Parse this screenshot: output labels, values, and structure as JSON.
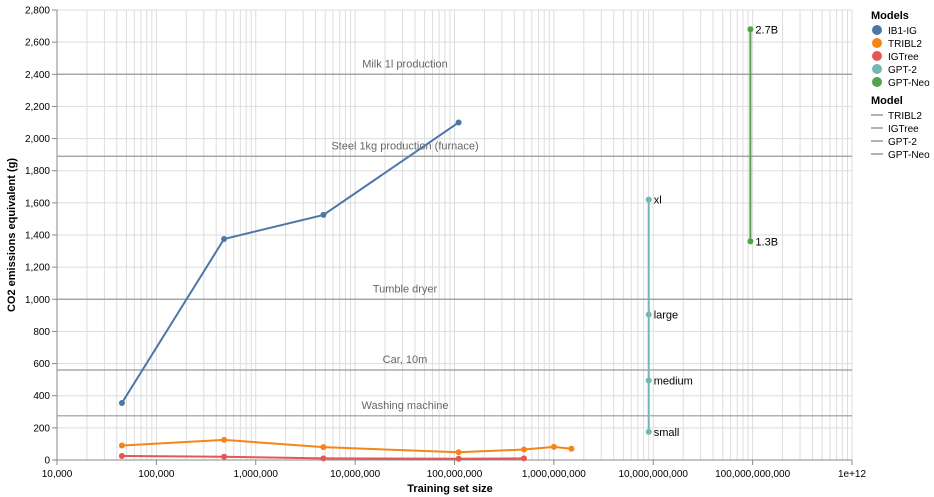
{
  "chart_data": {
    "type": "line",
    "xlabel": "Training set size",
    "ylabel": "CO2 emissions equivalent (g)",
    "x_scale": "log",
    "xlim": [
      10000,
      1000000000000
    ],
    "ylim": [
      0,
      2800
    ],
    "grid": true,
    "x_tick_labels": [
      "10,000",
      "100,000",
      "1,000,000",
      "10,000,000",
      "100,000,000",
      "1,000,000,000",
      "10,000,000,000",
      "100,000,000,000",
      "1e+12"
    ],
    "y_tick_labels": [
      "0",
      "200",
      "400",
      "600",
      "800",
      "1,000",
      "1,200",
      "1,400",
      "1,600",
      "1,800",
      "2,000",
      "2,200",
      "2,400",
      "2,600",
      "2,800"
    ],
    "series": [
      {
        "name": "IB1-IG",
        "color": "#4c78a8",
        "points": [
          {
            "x": 45000,
            "y": 355
          },
          {
            "x": 480000,
            "y": 1375
          },
          {
            "x": 4800000,
            "y": 1525
          },
          {
            "x": 110000000,
            "y": 2100
          }
        ]
      },
      {
        "name": "TRIBL2",
        "color": "#f58518",
        "points": [
          {
            "x": 45000,
            "y": 90
          },
          {
            "x": 480000,
            "y": 125
          },
          {
            "x": 4800000,
            "y": 80
          },
          {
            "x": 110000000,
            "y": 48
          },
          {
            "x": 500000000,
            "y": 65
          },
          {
            "x": 1000000000,
            "y": 82
          },
          {
            "x": 1500000000,
            "y": 70
          }
        ]
      },
      {
        "name": "IGTree",
        "color": "#e45756",
        "points": [
          {
            "x": 45000,
            "y": 25
          },
          {
            "x": 480000,
            "y": 20
          },
          {
            "x": 4800000,
            "y": 10
          },
          {
            "x": 110000000,
            "y": 8
          },
          {
            "x": 500000000,
            "y": 10
          }
        ]
      },
      {
        "name": "GPT-2",
        "color": "#72b7b2",
        "points": [
          {
            "x": 9000000000,
            "y": 175,
            "label": "small"
          },
          {
            "x": 9000000000,
            "y": 495,
            "label": "medium"
          },
          {
            "x": 9000000000,
            "y": 905,
            "label": "large"
          },
          {
            "x": 9000000000,
            "y": 1620,
            "label": "xl"
          }
        ]
      },
      {
        "name": "GPT-Neo",
        "color": "#54a24b",
        "points": [
          {
            "x": 95000000000,
            "y": 1360,
            "label": "1.3B"
          },
          {
            "x": 95000000000,
            "y": 2680,
            "label": "2.7B"
          }
        ]
      }
    ],
    "reference_lines": [
      {
        "label": "Milk 1l production",
        "y": 2400
      },
      {
        "label": "Steel 1kg production (furnace)",
        "y": 1890
      },
      {
        "label": "Tumble dryer",
        "y": 1000
      },
      {
        "label": "Car, 10m",
        "y": 560
      },
      {
        "label": "Washing machine",
        "y": 275
      }
    ],
    "legends": [
      {
        "title": "Models",
        "placement": "top-right",
        "symbol": "circle",
        "entries": [
          {
            "label": "IB1-IG",
            "color": "#4c78a8"
          },
          {
            "label": "TRIBL2",
            "color": "#f58518"
          },
          {
            "label": "IGTree",
            "color": "#e45756"
          },
          {
            "label": "GPT-2",
            "color": "#72b7b2"
          },
          {
            "label": "GPT-Neo",
            "color": "#54a24b"
          }
        ]
      },
      {
        "title": "Model",
        "placement": "top-right",
        "symbol": "line",
        "entries": [
          {
            "label": "TRIBL2",
            "color": "#999999"
          },
          {
            "label": "IGTree",
            "color": "#999999"
          },
          {
            "label": "GPT-2",
            "color": "#999999"
          },
          {
            "label": "GPT-Neo",
            "color": "#999999"
          }
        ]
      }
    ]
  }
}
